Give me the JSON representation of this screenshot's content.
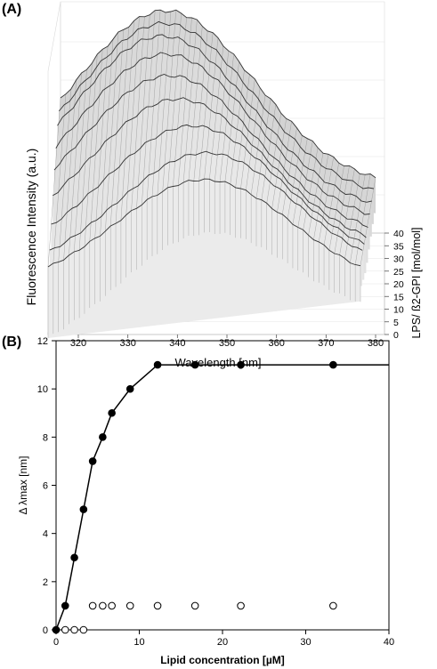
{
  "panel_a": {
    "label": "(A)",
    "ylabel": "Fluorescence Intensity (a.u.)",
    "zlabel": "LPS/ ß2-GPI [mol/mol]"
  },
  "panel_b": {
    "label": "(B)"
  },
  "chart_data": [
    {
      "type": "area",
      "title": "",
      "xlabel": "Wavelength [nm]",
      "ylabel": "Fluorescence Intensity (a.u.)",
      "zlabel": "LPS/ ß2-GPI [mol/mol]",
      "x_ticks": [
        320,
        330,
        340,
        350,
        360,
        370,
        380
      ],
      "z_ticks": [
        0,
        5,
        10,
        15,
        20,
        25,
        30,
        35,
        40
      ],
      "xlim": [
        320,
        380
      ],
      "zlim": [
        0,
        40
      ],
      "surface_peak_wavelength_nm": [
        350,
        350,
        347,
        344,
        342,
        341,
        340,
        340,
        340
      ],
      "series_relative_height": [
        0.62,
        0.7,
        0.78,
        0.86,
        0.92,
        0.97,
        1.0,
        1.0,
        1.0
      ]
    },
    {
      "type": "scatter",
      "title": "",
      "xlabel": "Lipid concentration [µM]",
      "ylabel": "Δ λmax [nm]",
      "xlim": [
        0,
        40
      ],
      "ylim": [
        0,
        12
      ],
      "x_ticks": [
        0,
        10,
        20,
        30,
        40
      ],
      "y_ticks": [
        0,
        2,
        4,
        6,
        8,
        10,
        12
      ],
      "grid": false,
      "series": [
        {
          "marker": "filled-circle",
          "line": true,
          "x": [
            0,
            1.1,
            2.2,
            3.3,
            4.4,
            5.6,
            6.7,
            8.9,
            12.2,
            16.7,
            22.2,
            33.3,
            40
          ],
          "y": [
            0,
            1,
            3,
            5,
            7,
            8,
            9,
            10,
            11,
            11,
            11,
            11,
            11
          ],
          "marker_count": 12
        },
        {
          "marker": "open-circle",
          "line": false,
          "x": [
            0,
            1.1,
            2.2,
            3.3,
            4.4,
            5.6,
            6.7,
            8.9,
            12.2,
            16.7,
            22.2,
            33.3
          ],
          "y": [
            0,
            0,
            0,
            0,
            1,
            1,
            1,
            1,
            1,
            1,
            1,
            1
          ]
        }
      ]
    }
  ]
}
